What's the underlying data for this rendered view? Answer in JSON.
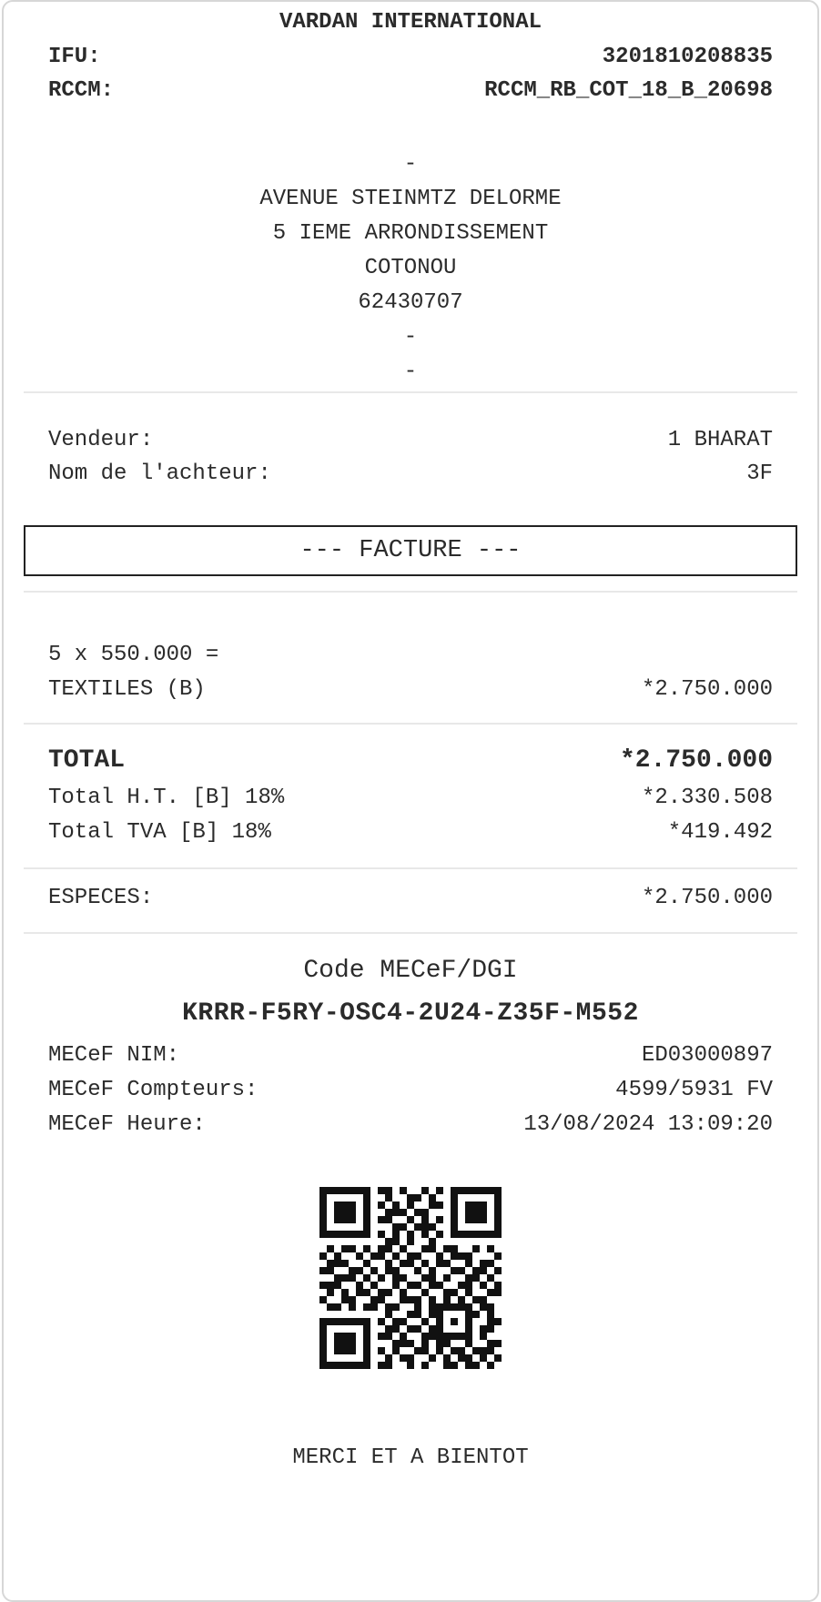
{
  "header": {
    "store_name": "VARDAN INTERNATIONAL",
    "ifu_label": "IFU:",
    "ifu_value": "3201810208835",
    "rccm_label": "RCCM:",
    "rccm_value": "RCCM_RB_COT_18_B_20698"
  },
  "address": {
    "lines": [
      "-",
      "AVENUE STEINMTZ DELORME",
      "5 IEME ARRONDISSEMENT",
      "COTONOU",
      "62430707",
      "-",
      "-"
    ]
  },
  "parties": {
    "vendor_label": "Vendeur:",
    "vendor_value": "1 BHARAT",
    "buyer_label": "Nom de l'achteur:",
    "buyer_value": "3F"
  },
  "invoice_banner": "--- FACTURE ---",
  "items": [
    {
      "qty_line": "5 x 550.000 =",
      "name": "TEXTILES (B)",
      "amount": "*2.750.000"
    }
  ],
  "totals": {
    "total_label": "TOTAL",
    "total_value": "*2.750.000",
    "rows": [
      {
        "label": "Total H.T. [B] 18%",
        "value": "*2.330.508"
      },
      {
        "label": "Total TVA [B] 18%",
        "value": "*419.492"
      }
    ]
  },
  "payment": {
    "label": "ESPECES:",
    "value": "*2.750.000"
  },
  "mecef": {
    "title": "Code MECeF/DGI",
    "code": "KRRR-F5RY-OSC4-2U24-Z35F-M552",
    "rows": [
      {
        "label": "MECeF NIM:",
        "value": "ED03000897"
      },
      {
        "label": "MECeF Compteurs:",
        "value": "4599/5931 FV"
      },
      {
        "label": "MECeF Heure:",
        "value": "13/08/2024 13:09:20"
      }
    ]
  },
  "qr": {
    "matrix": [
      "1111111011010010101111111",
      "1000001001001101001000001",
      "1011101010101001101011101",
      "1011101001110110001011101",
      "1011101011001010101011101",
      "1000001000110111001000001",
      "1111111010101010101111111",
      "0000000001101001000000000",
      "0101101011010011011001010",
      "1010010110101100101110001",
      "0111001001011010110010110",
      "1100110101100101001101101",
      "0011101010110011010011010",
      "1110010100101101100110101",
      "0101011011010010011010011",
      "1001100110011101010101100",
      "0110101101100101111110110",
      "0000000001001101100011010",
      "1111111010110010101010011",
      "1000001001101101100010110",
      "1011101011010011111110100",
      "1011101000111010110010011",
      "1011101010100110101101110",
      "1000001001011001010110101",
      "1111111011001010011011010"
    ]
  },
  "footer": {
    "message": "MERCI ET A BIENTOT"
  },
  "colors": {
    "text": "#2b2b2b",
    "divider": "#e8e8e8",
    "card_border": "#d7d7d7",
    "banner_border": "#222222",
    "qr_module": "#111111"
  }
}
